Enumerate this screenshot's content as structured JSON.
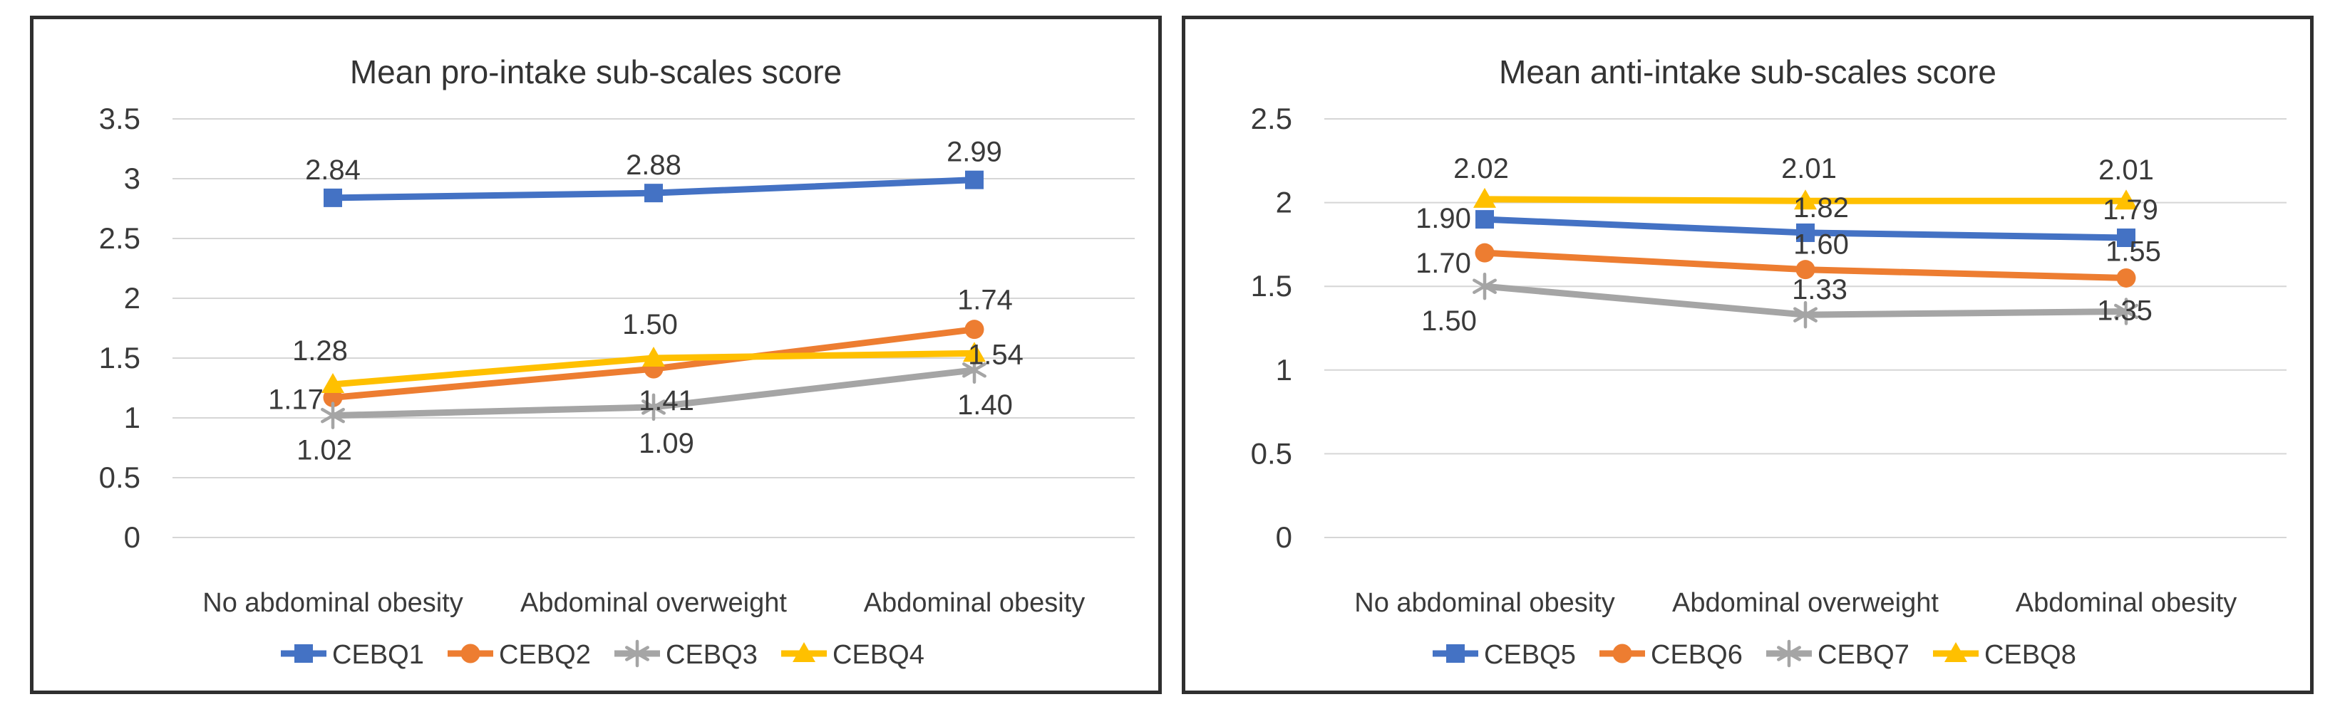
{
  "figure": {
    "background": "#ffffff",
    "panel_border_color": "#2f2f2f",
    "gridline_color": "#d6d6d6",
    "text_color": "#3a3a3a"
  },
  "chart_data": [
    {
      "type": "line",
      "title": "Mean pro-intake sub-scales score",
      "categories": [
        "No abdominal obesity",
        "Abdominal overweight",
        "Abdominal obesity"
      ],
      "series": [
        {
          "name": "CEBQ1",
          "color": "#4472C4",
          "marker": "square",
          "values": [
            2.84,
            2.88,
            2.99
          ]
        },
        {
          "name": "CEBQ2",
          "color": "#ED7D31",
          "marker": "circle",
          "values": [
            1.17,
            1.41,
            1.74
          ]
        },
        {
          "name": "CEBQ3",
          "color": "#A5A5A5",
          "marker": "asterisk",
          "values": [
            1.02,
            1.09,
            1.4
          ]
        },
        {
          "name": "CEBQ4",
          "color": "#FFC000",
          "marker": "triangle",
          "values": [
            1.28,
            1.5,
            1.54
          ]
        }
      ],
      "ylim": [
        0,
        3.5
      ],
      "ytick_step": 0.5,
      "yticks": [
        "3.5",
        "3",
        "2.5",
        "2",
        "1.5",
        "1",
        "0.5",
        "0"
      ],
      "grid": true,
      "data_labels": true,
      "label_format": "2dp",
      "legend_position": "bottom"
    },
    {
      "type": "line",
      "title": "Mean anti-intake sub-scales score",
      "categories": [
        "No abdominal obesity",
        "Abdominal overweight",
        "Abdominal obesity"
      ],
      "series": [
        {
          "name": "CEBQ5",
          "color": "#4472C4",
          "marker": "square",
          "values": [
            1.9,
            1.82,
            1.79
          ]
        },
        {
          "name": "CEBQ6",
          "color": "#ED7D31",
          "marker": "circle",
          "values": [
            1.7,
            1.6,
            1.55
          ]
        },
        {
          "name": "CEBQ7",
          "color": "#A5A5A5",
          "marker": "asterisk",
          "values": [
            1.5,
            1.33,
            1.35
          ]
        },
        {
          "name": "CEBQ8",
          "color": "#FFC000",
          "marker": "triangle",
          "values": [
            2.02,
            2.01,
            2.01
          ]
        }
      ],
      "ylim": [
        0,
        2.5
      ],
      "ytick_step": 0.5,
      "yticks": [
        "2.5",
        "2",
        "1.5",
        "1",
        "0.5",
        "0"
      ],
      "grid": true,
      "data_labels": true,
      "label_format": "2dp",
      "legend_position": "bottom"
    }
  ]
}
